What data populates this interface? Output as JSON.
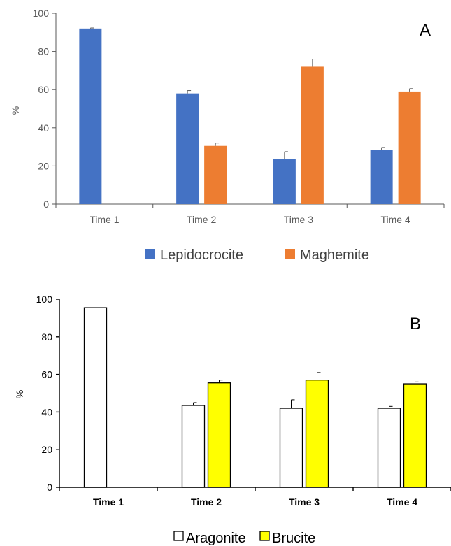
{
  "chart_data": [
    {
      "type": "bar",
      "panel_label": "A",
      "categories": [
        "Time 1",
        "Time 2",
        "Time 3",
        "Time 4"
      ],
      "ylabel": "%",
      "xlabel": "",
      "ylim": [
        0,
        100
      ],
      "yticks": [
        "0",
        "20",
        "40",
        "60",
        "80",
        "100"
      ],
      "grid": false,
      "legend_position": "bottom",
      "series": [
        {
          "name": "Lepidocrocite",
          "color": "#4472C4",
          "values": [
            92,
            58,
            23.5,
            28.5
          ],
          "errors": [
            0.3,
            1.5,
            4,
            1.2
          ]
        },
        {
          "name": "Maghemite",
          "color": "#ED7D31",
          "values": [
            0,
            30.5,
            72,
            59
          ],
          "errors": [
            0,
            1.5,
            4,
            1.5
          ]
        }
      ]
    },
    {
      "type": "bar",
      "panel_label": "B",
      "categories": [
        "Time 1",
        "Time 2",
        "Time 3",
        "Time 4"
      ],
      "ylabel": "%",
      "xlabel": "",
      "ylim": [
        0,
        100
      ],
      "yticks": [
        "0",
        "20",
        "40",
        "60",
        "80",
        "100"
      ],
      "grid": false,
      "legend_position": "bottom",
      "series": [
        {
          "name": "Aragonite",
          "color": "#FFFFFF",
          "values": [
            95.5,
            43.5,
            42,
            42
          ],
          "errors": [
            0,
            1.5,
            4.5,
            1
          ]
        },
        {
          "name": "Brucite",
          "color": "#FFFF00",
          "values": [
            0,
            55.5,
            57,
            55
          ],
          "errors": [
            0,
            1.5,
            4,
            1
          ]
        }
      ]
    }
  ]
}
